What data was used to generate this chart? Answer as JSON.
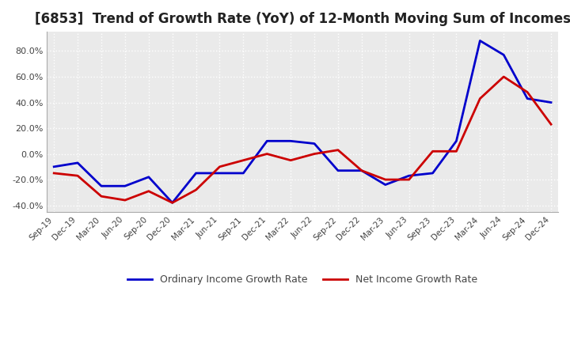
{
  "title": "[6853]  Trend of Growth Rate (YoY) of 12-Month Moving Sum of Incomes",
  "title_fontsize": 12,
  "ylim": [
    -45,
    95
  ],
  "yticks": [
    -40,
    -20,
    0,
    20,
    40,
    60,
    80
  ],
  "background_color": "#ffffff",
  "plot_bg_color": "#eaeaea",
  "grid_color": "#ffffff",
  "legend_labels": [
    "Ordinary Income Growth Rate",
    "Net Income Growth Rate"
  ],
  "line_colors": [
    "#0000cc",
    "#cc0000"
  ],
  "line_width": 2.0,
  "x_labels": [
    "Sep-19",
    "Dec-19",
    "Mar-20",
    "Jun-20",
    "Sep-20",
    "Dec-20",
    "Mar-21",
    "Jun-21",
    "Sep-21",
    "Dec-21",
    "Mar-22",
    "Jun-22",
    "Sep-22",
    "Dec-22",
    "Mar-23",
    "Jun-23",
    "Sep-23",
    "Dec-23",
    "Mar-24",
    "Jun-24",
    "Sep-24",
    "Dec-24"
  ],
  "ordinary_income": [
    -10,
    -7,
    -25,
    -25,
    -18,
    -38,
    -15,
    -15,
    -15,
    10,
    10,
    8,
    -13,
    -13,
    -24,
    -17,
    -15,
    10,
    88,
    77,
    43,
    40
  ],
  "net_income": [
    -15,
    -17,
    -33,
    -36,
    -29,
    -38,
    -28,
    -10,
    -5,
    0,
    -5,
    0,
    3,
    -13,
    -20,
    -20,
    2,
    2,
    43,
    60,
    48,
    23
  ]
}
